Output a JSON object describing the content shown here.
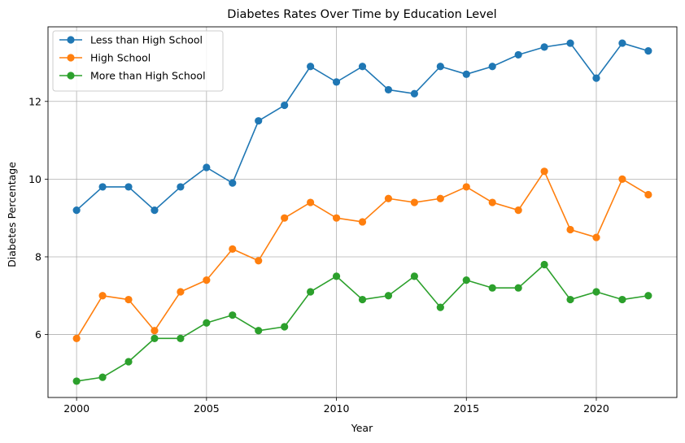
{
  "chart_data": {
    "type": "line",
    "title": "Diabetes Rates Over Time by Education Level",
    "xlabel": "Year",
    "ylabel": "Diabetes Percentage",
    "xlim": [
      1998.9,
      2023.1
    ],
    "ylim": [
      4.38,
      13.92
    ],
    "xticks": [
      2000,
      2005,
      2010,
      2015,
      2020
    ],
    "yticks": [
      6,
      8,
      10,
      12
    ],
    "grid": true,
    "legend_position": "upper-left",
    "x": [
      2000,
      2001,
      2002,
      2003,
      2004,
      2005,
      2006,
      2007,
      2008,
      2009,
      2010,
      2011,
      2012,
      2013,
      2014,
      2015,
      2016,
      2017,
      2018,
      2019,
      2020,
      2021,
      2022
    ],
    "series": [
      {
        "name": "Less than High School",
        "color": "#1f77b4",
        "values": [
          9.2,
          9.8,
          9.8,
          9.2,
          9.8,
          10.3,
          9.9,
          11.5,
          11.9,
          12.9,
          12.5,
          12.9,
          12.3,
          12.2,
          12.9,
          12.7,
          12.9,
          13.2,
          13.4,
          13.5,
          12.6,
          13.5,
          13.3
        ]
      },
      {
        "name": "High School",
        "color": "#ff7f0e",
        "values": [
          5.9,
          7.0,
          6.9,
          6.1,
          7.1,
          7.4,
          8.2,
          7.9,
          9.0,
          9.4,
          9.0,
          8.9,
          9.5,
          9.4,
          9.5,
          9.8,
          9.4,
          9.2,
          10.2,
          8.7,
          8.5,
          10.0,
          9.6
        ]
      },
      {
        "name": "More than High School",
        "color": "#2ca02c",
        "values": [
          4.8,
          4.9,
          5.3,
          5.9,
          5.9,
          6.3,
          6.5,
          6.1,
          6.2,
          7.1,
          7.5,
          6.9,
          7.0,
          7.5,
          6.7,
          7.4,
          7.2,
          7.2,
          7.8,
          6.9,
          7.1,
          6.9,
          7.0
        ]
      }
    ]
  }
}
